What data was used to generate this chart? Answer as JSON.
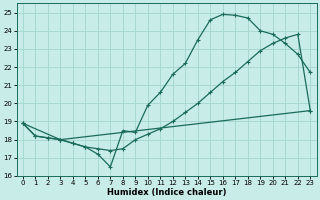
{
  "xlabel": "Humidex (Indice chaleur)",
  "bg_color": "#c8ece8",
  "grid_color": "#a8d8d0",
  "line_color": "#1a6b5a",
  "xlim": [
    -0.5,
    23.5
  ],
  "ylim": [
    16,
    25.5
  ],
  "xticks": [
    0,
    1,
    2,
    3,
    4,
    5,
    6,
    7,
    8,
    9,
    10,
    11,
    12,
    13,
    14,
    15,
    16,
    17,
    18,
    19,
    20,
    21,
    22,
    23
  ],
  "yticks": [
    16,
    17,
    18,
    19,
    20,
    21,
    22,
    23,
    24,
    25
  ],
  "line1_x": [
    0,
    1,
    2,
    3,
    4,
    5,
    6,
    7,
    8,
    9,
    10,
    11,
    12,
    13,
    14,
    15,
    16,
    17,
    18,
    19,
    20,
    21,
    22,
    23
  ],
  "line1_y": [
    18.9,
    18.2,
    18.1,
    18.0,
    17.8,
    17.6,
    17.2,
    16.5,
    18.5,
    18.4,
    19.9,
    20.6,
    21.6,
    22.2,
    23.5,
    24.6,
    24.9,
    24.85,
    24.7,
    24.0,
    23.8,
    23.3,
    22.7,
    21.7
  ],
  "line2_x": [
    0,
    1,
    2,
    3,
    4,
    5,
    6,
    7,
    8,
    9,
    10,
    11,
    12,
    13,
    14,
    15,
    16,
    17,
    18,
    19,
    20,
    21,
    22,
    23
  ],
  "line2_y": [
    18.9,
    18.2,
    18.1,
    18.0,
    17.8,
    17.6,
    17.5,
    17.4,
    17.5,
    18.0,
    18.3,
    18.6,
    19.0,
    19.5,
    20.0,
    20.6,
    21.2,
    21.7,
    22.3,
    22.9,
    23.3,
    23.6,
    23.8,
    19.6
  ],
  "line3_x": [
    0,
    3,
    23
  ],
  "line3_y": [
    18.9,
    18.0,
    19.6
  ]
}
